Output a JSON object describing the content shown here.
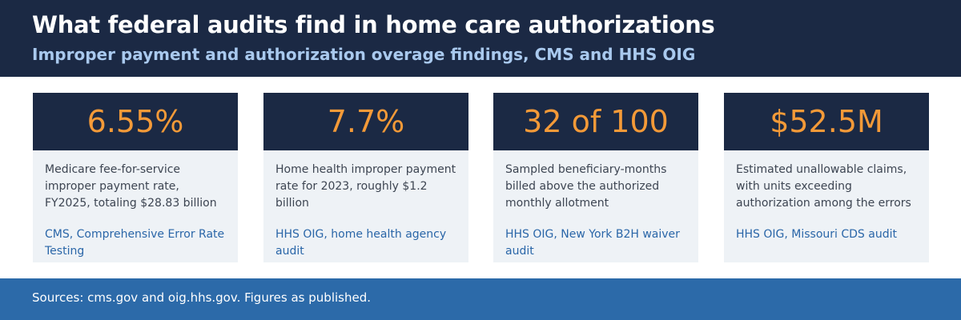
{
  "header": {
    "title": "What federal audits find in home care authorizations",
    "subtitle": "Improper payment and authorization overage findings, CMS and HHS OIG"
  },
  "cards": [
    {
      "stat": "6.55%",
      "description": "Medicare fee-for-service improper payment rate, FY2025, totaling $28.83 billion",
      "source": "CMS, Comprehensive Error Rate Testing"
    },
    {
      "stat": "7.7%",
      "description": "Home health improper payment rate for 2023, roughly $1.2 billion",
      "source": "HHS OIG, home health agency audit"
    },
    {
      "stat": "32 of 100",
      "description": "Sampled beneficiary-months billed above the authorized monthly allotment",
      "source": "HHS OIG, New York B2H waiver audit"
    },
    {
      "stat": "$52.5M",
      "description": "Estimated unallowable claims, with units exceeding authorization among the errors",
      "source": "HHS OIG, Missouri CDS audit"
    }
  ],
  "footer": {
    "text": "Sources: cms.gov and oig.hhs.gov. Figures as published."
  }
}
